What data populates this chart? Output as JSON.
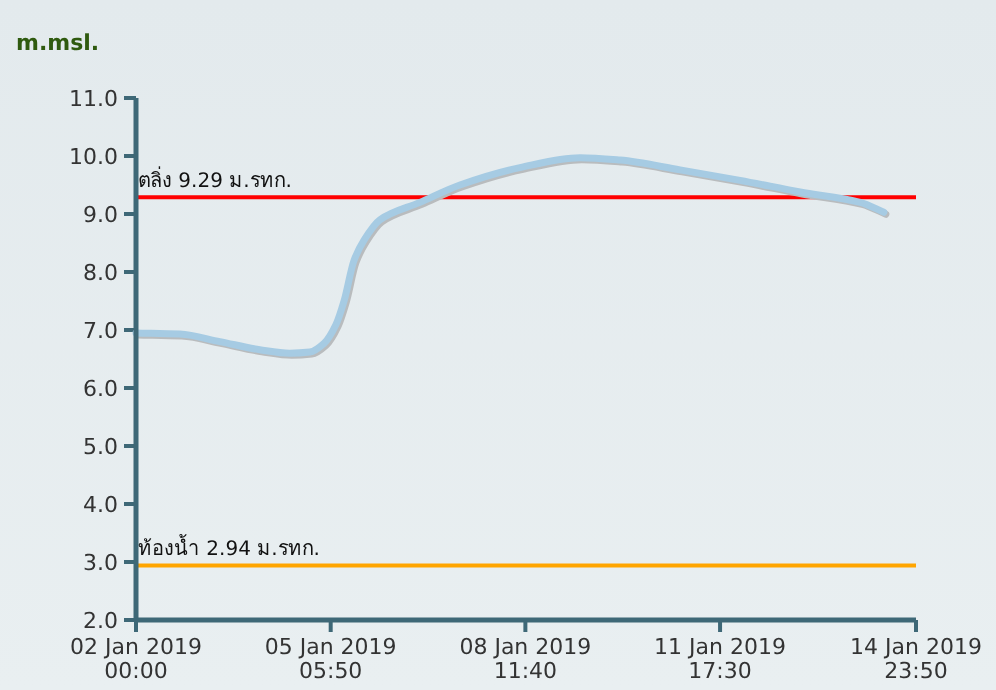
{
  "chart_data": {
    "type": "line",
    "ylabel": "m.msl.",
    "x": [
      "2019-01-02T00:00",
      "2019-01-02T17:30",
      "2019-01-03T09:30",
      "2019-01-04T01:30",
      "2019-01-04T13:30",
      "2019-01-04T21:30",
      "2019-01-05T03:10",
      "2019-01-05T08:00",
      "2019-01-05T11:10",
      "2019-01-05T15:10",
      "2019-01-05T19:10",
      "2019-01-06T01:30",
      "2019-01-06T17:30",
      "2019-01-07T09:30",
      "2019-01-08T09:30",
      "2019-01-09T09:30",
      "2019-01-10T01:30",
      "2019-01-11T01:30",
      "2019-01-12T01:30",
      "2019-01-13T01:30",
      "2019-01-14T01:30",
      "2019-01-14T11:00"
    ],
    "series": [
      {
        "color": "#a6cbe3",
        "values": [
          6.95,
          6.93,
          6.8,
          6.66,
          6.6,
          6.62,
          6.77,
          7.1,
          7.5,
          8.2,
          8.55,
          8.9,
          9.2,
          9.5,
          9.8,
          9.97,
          9.93,
          9.76,
          9.58,
          9.38,
          9.2,
          9.03
        ]
      }
    ],
    "xlim": [
      "2019-01-02T00:00",
      "2019-01-14T23:50"
    ],
    "xticks": [
      {
        "value": "2019-01-02T00:00",
        "label": "02 Jan 2019\n00:00"
      },
      {
        "value": "2019-01-05T05:50",
        "label": "05 Jan 2019\n05:50"
      },
      {
        "value": "2019-01-08T11:40",
        "label": "08 Jan 2019\n11:40"
      },
      {
        "value": "2019-01-11T17:30",
        "label": "11 Jan 2019\n17:30"
      },
      {
        "value": "2019-01-14T23:50",
        "label": "14 Jan 2019\n23:50"
      }
    ],
    "ylim": [
      2,
      11
    ],
    "yticks": [
      {
        "value": 2,
        "label": "2.0"
      },
      {
        "value": 3,
        "label": "3.0"
      },
      {
        "value": 4,
        "label": "4.0"
      },
      {
        "value": 5,
        "label": "5.0"
      },
      {
        "value": 6,
        "label": "6.0"
      },
      {
        "value": 7,
        "label": "7.0"
      },
      {
        "value": 8,
        "label": "8.0"
      },
      {
        "value": 9,
        "label": "9.0"
      },
      {
        "value": 10,
        "label": "10.0"
      },
      {
        "value": 11,
        "label": "11.0"
      }
    ],
    "ref_lines": [
      {
        "axis": "y",
        "value": 9.29,
        "label": "ตลิ่ง 9.29 ม.รทก.",
        "color": "#ff0000"
      },
      {
        "axis": "y",
        "value": 2.94,
        "label": "ท้องน้ำ 2.94 ม.รทก.",
        "color": "#ffa500"
      }
    ]
  }
}
